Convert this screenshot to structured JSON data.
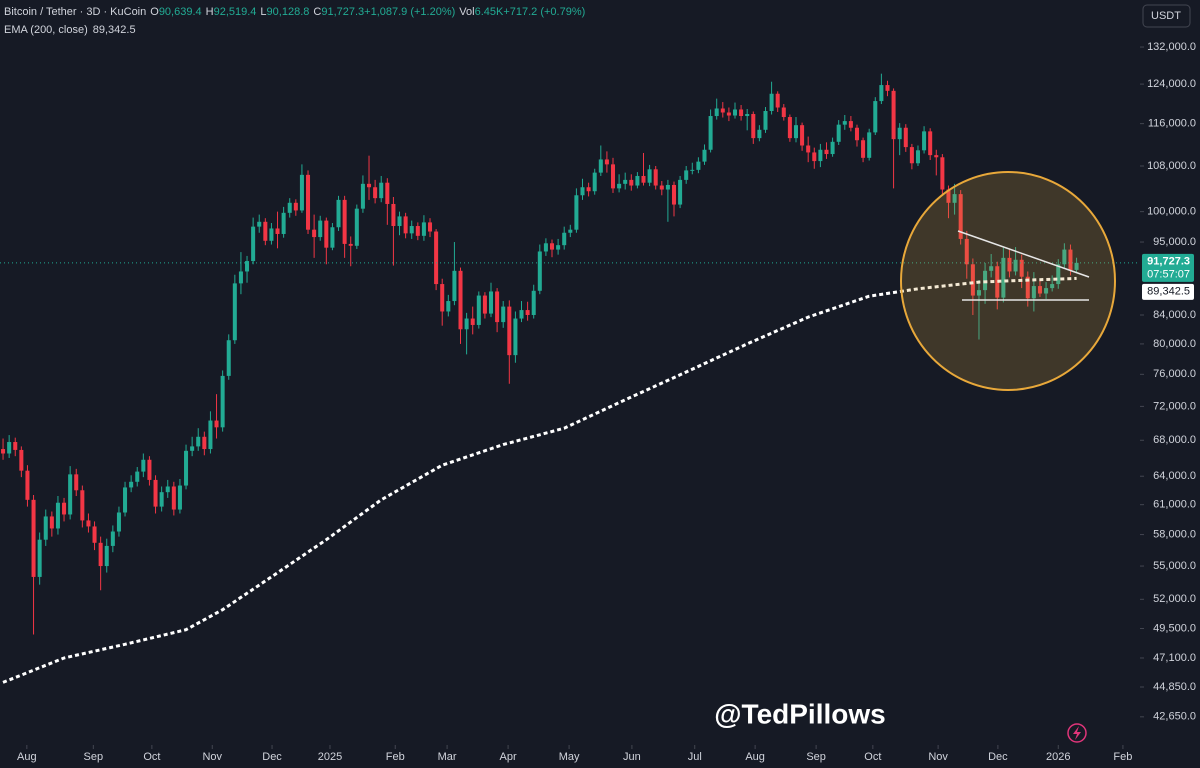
{
  "chart_data": {
    "type": "candlestick",
    "header": {
      "symbol": "Bitcoin / Tether · 3D · KuCoin",
      "o_key": "O",
      "o": "90,639.4",
      "h_key": "H",
      "h": "92,519.4",
      "l_key": "L",
      "l": "90,128.8",
      "c_key": "C",
      "c": "91,727.3",
      "change": "+1,087.9 (+1.20%)",
      "vol_key": "Vol",
      "vol": "6.45K",
      "vol_change": "+717.2 (+0.79%)",
      "ema_name": "EMA (200, close)",
      "ema_value": "89,342.5"
    },
    "currency": "USDT",
    "last_price_label": "91,727.3",
    "countdown": "07:57:07",
    "ema_label": "89,342.5",
    "watermark": "@TedPillows",
    "log": true,
    "up_color": "#22ab94",
    "down_color": "#f23645",
    "ylim": [
      40670,
      142900
    ],
    "yticks": [
      {
        "value": 132000,
        "label": "132,000.0"
      },
      {
        "value": 124000,
        "label": "124,000.0"
      },
      {
        "value": 116000,
        "label": "116,000.0"
      },
      {
        "value": 108000,
        "label": "108,000.0"
      },
      {
        "value": 100000,
        "label": "100,000.0"
      },
      {
        "value": 95000,
        "label": "95,000.0"
      },
      {
        "value": 84000,
        "label": "84,000.0"
      },
      {
        "value": 80000,
        "label": "80,000.0"
      },
      {
        "value": 76000,
        "label": "76,000.0"
      },
      {
        "value": 72000,
        "label": "72,000.0"
      },
      {
        "value": 68000,
        "label": "68,000.0"
      },
      {
        "value": 64000,
        "label": "64,000.0"
      },
      {
        "value": 61000,
        "label": "61,000.0"
      },
      {
        "value": 58000,
        "label": "58,000.0"
      },
      {
        "value": 55000,
        "label": "55,000.0"
      },
      {
        "value": 52000,
        "label": "52,000.0"
      },
      {
        "value": 49500,
        "label": "49,500.0"
      },
      {
        "value": 47100,
        "label": "47,100.0"
      },
      {
        "value": 44850,
        "label": "44,850.0"
      },
      {
        "value": 42650,
        "label": "42,650.0"
      }
    ],
    "xlim": [
      -0.5,
      186.4
    ],
    "xticks": [
      {
        "value": 3.9,
        "label": "Aug"
      },
      {
        "value": 14.8,
        "label": "Sep"
      },
      {
        "value": 24.4,
        "label": "Oct"
      },
      {
        "value": 34.3,
        "label": "Nov"
      },
      {
        "value": 44.1,
        "label": "Dec"
      },
      {
        "value": 53.6,
        "label": "2025"
      },
      {
        "value": 64.3,
        "label": "Feb"
      },
      {
        "value": 72.8,
        "label": "Mar"
      },
      {
        "value": 82.8,
        "label": "Apr"
      },
      {
        "value": 92.8,
        "label": "May"
      },
      {
        "value": 103.1,
        "label": "Jun"
      },
      {
        "value": 113.4,
        "label": "Jul"
      },
      {
        "value": 123.3,
        "label": "Aug"
      },
      {
        "value": 133.3,
        "label": "Sep"
      },
      {
        "value": 142.6,
        "label": "Oct"
      },
      {
        "value": 153.3,
        "label": "Nov"
      },
      {
        "value": 163.1,
        "label": "Dec"
      },
      {
        "value": 173,
        "label": "2026"
      },
      {
        "value": 183.6,
        "label": "Feb"
      }
    ],
    "ema": {
      "name": "EMA (200, close)",
      "color": "#ffffff",
      "x": [
        0,
        10,
        20,
        30,
        36,
        44,
        53,
        62,
        72,
        82,
        92,
        102,
        112,
        122,
        132,
        142,
        150,
        160,
        168,
        176
      ],
      "values": [
        45200,
        47100,
        48200,
        49400,
        51100,
        54000,
        57500,
        61500,
        65200,
        67500,
        69400,
        72800,
        76300,
        80000,
        83700,
        86700,
        87800,
        88800,
        89100,
        89342.5
      ]
    },
    "candles": [
      [
        67000,
        68200,
        65800,
        66500
      ],
      [
        66500,
        68600,
        66000,
        67800
      ],
      [
        67800,
        68300,
        66200,
        66900
      ],
      [
        66900,
        67300,
        63900,
        64600
      ],
      [
        64600,
        65200,
        60800,
        61500
      ],
      [
        61500,
        62000,
        49000,
        54000
      ],
      [
        54000,
        58200,
        53300,
        57500
      ],
      [
        57500,
        60500,
        56900,
        59800
      ],
      [
        59800,
        60300,
        57800,
        58600
      ],
      [
        58600,
        61900,
        58000,
        61200
      ],
      [
        61200,
        61700,
        59300,
        60000
      ],
      [
        60000,
        65100,
        59500,
        64200
      ],
      [
        64200,
        64800,
        61900,
        62500
      ],
      [
        62500,
        63000,
        58700,
        59400
      ],
      [
        59400,
        60100,
        58200,
        58800
      ],
      [
        58800,
        59300,
        56500,
        57200
      ],
      [
        57200,
        57800,
        52800,
        55000
      ],
      [
        55000,
        57600,
        54400,
        56900
      ],
      [
        56900,
        58900,
        56300,
        58300
      ],
      [
        58300,
        60800,
        57800,
        60200
      ],
      [
        60200,
        63400,
        59800,
        62800
      ],
      [
        62800,
        64100,
        62300,
        63400
      ],
      [
        63400,
        65000,
        62900,
        64500
      ],
      [
        64500,
        66500,
        63900,
        65800
      ],
      [
        65800,
        66200,
        63000,
        63600
      ],
      [
        63600,
        64100,
        60100,
        60800
      ],
      [
        60800,
        62900,
        60300,
        62300
      ],
      [
        62300,
        63600,
        61700,
        62900
      ],
      [
        62900,
        63400,
        59900,
        60500
      ],
      [
        60500,
        63700,
        60100,
        63000
      ],
      [
        63000,
        67500,
        62600,
        66800
      ],
      [
        66800,
        68400,
        66200,
        67300
      ],
      [
        67300,
        69400,
        66800,
        68400
      ],
      [
        68400,
        69000,
        66300,
        67000
      ],
      [
        67000,
        71400,
        66500,
        70300
      ],
      [
        70300,
        73500,
        68200,
        69500
      ],
      [
        69500,
        76500,
        69000,
        75800
      ],
      [
        75800,
        81300,
        75300,
        80500
      ],
      [
        80500,
        89900,
        80000,
        88600
      ],
      [
        88600,
        93400,
        87000,
        90400
      ],
      [
        90400,
        92800,
        88700,
        92000
      ],
      [
        92000,
        99000,
        91500,
        97500
      ],
      [
        97500,
        99500,
        96500,
        98300
      ],
      [
        98300,
        98900,
        94500,
        95200
      ],
      [
        95200,
        98100,
        94600,
        97200
      ],
      [
        97200,
        100000,
        94000,
        96300
      ],
      [
        96300,
        100800,
        95700,
        99800
      ],
      [
        99800,
        102300,
        99000,
        101500
      ],
      [
        101500,
        102100,
        99300,
        100200
      ],
      [
        100200,
        108300,
        99800,
        106400
      ],
      [
        106400,
        107200,
        96300,
        97000
      ],
      [
        97000,
        99500,
        92500,
        95800
      ],
      [
        95800,
        99300,
        95200,
        98500
      ],
      [
        98500,
        99000,
        91500,
        94100
      ],
      [
        94100,
        98100,
        93700,
        97400
      ],
      [
        97400,
        102700,
        96800,
        102000
      ],
      [
        102000,
        102700,
        92500,
        94700
      ],
      [
        94700,
        95900,
        91200,
        94400
      ],
      [
        94400,
        101200,
        93900,
        100500
      ],
      [
        100500,
        106300,
        99800,
        104800
      ],
      [
        104800,
        109900,
        102000,
        104200
      ],
      [
        104200,
        105500,
        101400,
        102300
      ],
      [
        102300,
        106200,
        101600,
        105000
      ],
      [
        105000,
        105800,
        97800,
        101300
      ],
      [
        101300,
        102500,
        91300,
        97600
      ],
      [
        97600,
        100000,
        96100,
        99200
      ],
      [
        99200,
        99800,
        95600,
        96400
      ],
      [
        96400,
        98500,
        95500,
        97600
      ],
      [
        97600,
        98200,
        95300,
        96000
      ],
      [
        96000,
        99400,
        95200,
        98200
      ],
      [
        98200,
        98900,
        95800,
        96700
      ],
      [
        96700,
        97100,
        87600,
        88500
      ],
      [
        88500,
        89300,
        82500,
        84500
      ],
      [
        84500,
        86900,
        83800,
        86000
      ],
      [
        86000,
        95000,
        85400,
        90500
      ],
      [
        90500,
        91000,
        80000,
        82000
      ],
      [
        82000,
        84300,
        78600,
        83500
      ],
      [
        83500,
        85200,
        81300,
        82600
      ],
      [
        82600,
        87400,
        82100,
        86800
      ],
      [
        86800,
        87300,
        83500,
        84200
      ],
      [
        84200,
        88700,
        83700,
        87400
      ],
      [
        87400,
        87900,
        81600,
        83000
      ],
      [
        83000,
        86000,
        82200,
        85200
      ],
      [
        85200,
        86100,
        74800,
        78500
      ],
      [
        78500,
        84500,
        77500,
        83500
      ],
      [
        83500,
        86000,
        83000,
        84700
      ],
      [
        84700,
        85900,
        83200,
        84000
      ],
      [
        84000,
        88400,
        83500,
        87500
      ],
      [
        87500,
        94600,
        87000,
        93500
      ],
      [
        93500,
        95600,
        92800,
        94800
      ],
      [
        94800,
        95400,
        92600,
        93800
      ],
      [
        93800,
        95500,
        93000,
        94500
      ],
      [
        94500,
        97500,
        93800,
        96500
      ],
      [
        96500,
        97800,
        95800,
        97000
      ],
      [
        97000,
        104000,
        96500,
        102800
      ],
      [
        102800,
        105700,
        102000,
        104200
      ],
      [
        104200,
        105000,
        102600,
        103500
      ],
      [
        103500,
        107500,
        102900,
        106800
      ],
      [
        106800,
        111800,
        106200,
        109200
      ],
      [
        109200,
        110700,
        106800,
        108300
      ],
      [
        108300,
        109500,
        103200,
        104000
      ],
      [
        104000,
        106500,
        103300,
        104800
      ],
      [
        104800,
        106800,
        103800,
        105500
      ],
      [
        105500,
        106500,
        103600,
        104500
      ],
      [
        104500,
        106900,
        104000,
        106200
      ],
      [
        106200,
        110400,
        104500,
        105000
      ],
      [
        105000,
        108200,
        104400,
        107400
      ],
      [
        107400,
        108000,
        103800,
        104500
      ],
      [
        104500,
        105300,
        102800,
        103800
      ],
      [
        103800,
        105500,
        98300,
        104600
      ],
      [
        104600,
        105200,
        99200,
        101200
      ],
      [
        101200,
        106200,
        100600,
        105500
      ],
      [
        105500,
        108000,
        104800,
        107200
      ],
      [
        107200,
        108600,
        106500,
        107300
      ],
      [
        107300,
        109600,
        106700,
        108800
      ],
      [
        108800,
        112000,
        108200,
        111000
      ],
      [
        111000,
        118800,
        110500,
        117500
      ],
      [
        117500,
        121000,
        116800,
        119000
      ],
      [
        119000,
        120300,
        117200,
        118200
      ],
      [
        118200,
        119200,
        116500,
        117600
      ],
      [
        117600,
        120200,
        117000,
        118800
      ],
      [
        118800,
        119700,
        116600,
        117500
      ],
      [
        117500,
        118900,
        114700,
        117900
      ],
      [
        117900,
        118400,
        112100,
        113200
      ],
      [
        113200,
        115700,
        112600,
        114800
      ],
      [
        114800,
        119300,
        114200,
        118500
      ],
      [
        118500,
        124500,
        117800,
        122000
      ],
      [
        122000,
        122500,
        118300,
        119200
      ],
      [
        119200,
        119900,
        116600,
        117300
      ],
      [
        117300,
        117800,
        112500,
        113200
      ],
      [
        113200,
        117300,
        112400,
        115700
      ],
      [
        115700,
        116200,
        110800,
        111800
      ],
      [
        111800,
        113500,
        108700,
        110500
      ],
      [
        110500,
        111400,
        107500,
        108900
      ],
      [
        108900,
        112100,
        107800,
        111000
      ],
      [
        111000,
        112400,
        109300,
        110200
      ],
      [
        110200,
        113300,
        109700,
        112500
      ],
      [
        112500,
        116700,
        111900,
        115800
      ],
      [
        115800,
        117700,
        114800,
        116500
      ],
      [
        116500,
        117500,
        114500,
        115200
      ],
      [
        115200,
        115800,
        111600,
        112800
      ],
      [
        112800,
        113300,
        108700,
        109500
      ],
      [
        109500,
        115000,
        109000,
        114300
      ],
      [
        114300,
        121300,
        113800,
        120500
      ],
      [
        120500,
        126200,
        119900,
        123800
      ],
      [
        123800,
        124700,
        121500,
        122600
      ],
      [
        122600,
        123100,
        104000,
        113000
      ],
      [
        113000,
        116100,
        110000,
        115200
      ],
      [
        115200,
        115900,
        110600,
        111500
      ],
      [
        111500,
        112100,
        107400,
        108500
      ],
      [
        108500,
        111800,
        108000,
        110900
      ],
      [
        110900,
        115500,
        110300,
        114500
      ],
      [
        114500,
        115100,
        109100,
        110000
      ],
      [
        110000,
        111000,
        106300,
        109600
      ],
      [
        109600,
        110200,
        102700,
        103800
      ],
      [
        103800,
        104500,
        98900,
        101500
      ],
      [
        101500,
        104800,
        99500,
        103000
      ],
      [
        103000,
        103700,
        94600,
        95500
      ],
      [
        95500,
        96800,
        89300,
        91500
      ],
      [
        91500,
        92400,
        84000,
        86800
      ],
      [
        86800,
        89100,
        80600,
        87600
      ],
      [
        87600,
        91700,
        85600,
        90500
      ],
      [
        90500,
        93100,
        89500,
        91200
      ],
      [
        91200,
        91900,
        84800,
        86500
      ],
      [
        86500,
        94100,
        85800,
        92500
      ],
      [
        92500,
        93800,
        89500,
        90400
      ],
      [
        90400,
        94200,
        89800,
        92200
      ],
      [
        92200,
        93000,
        87900,
        89600
      ],
      [
        89600,
        90400,
        85200,
        86400
      ],
      [
        86400,
        90300,
        84500,
        88200
      ],
      [
        88200,
        89100,
        86600,
        87100
      ],
      [
        87100,
        88800,
        86300,
        87900
      ],
      [
        87900,
        89800,
        87400,
        88500
      ],
      [
        88500,
        92300,
        87800,
        91500
      ],
      [
        91500,
        94800,
        90800,
        93800
      ],
      [
        93800,
        94600,
        89800,
        90600
      ],
      [
        90639.4,
        92519.4,
        90128.8,
        91727.3
      ]
    ]
  }
}
